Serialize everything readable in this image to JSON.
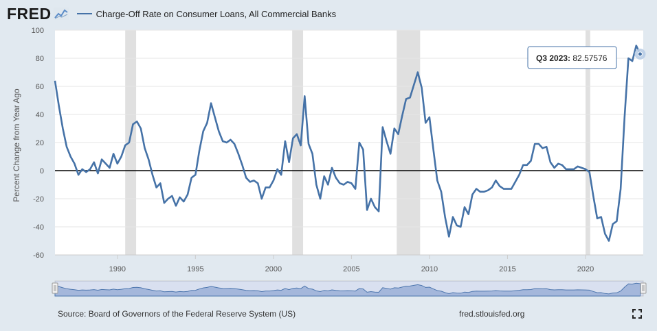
{
  "header": {
    "logo_text": "FRED",
    "legend_label": "Charge-Off Rate on Consumer Loans, All Commercial Banks"
  },
  "footer": {
    "source": "Source: Board of Governors of the Federal Reserve System (US)",
    "url": "fred.stlouisfed.org"
  },
  "colors": {
    "series": "#4572a7",
    "recession": "#e0e0e0",
    "zero_line": "#000000",
    "navigator_fill": "#b8c9e3"
  },
  "tooltip": {
    "label": "Q3 2023:",
    "value": "82.57576"
  },
  "chart_data": {
    "type": "line",
    "ylabel": "Percent Change from Year Ago",
    "ylim": [
      -60,
      100
    ],
    "xlim": [
      1986.0,
      2023.7
    ],
    "y_ticks": [
      100,
      80,
      60,
      40,
      20,
      0,
      -20,
      -40,
      -60
    ],
    "x_ticks": [
      1990,
      1995,
      2000,
      2005,
      2010,
      2015,
      2020
    ],
    "recessions": [
      [
        1990.5,
        1991.2
      ],
      [
        2001.2,
        2001.9
      ],
      [
        2007.9,
        2009.4
      ],
      [
        2020.0,
        2020.3
      ]
    ],
    "series": [
      {
        "name": "Charge-Off Rate on Consumer Loans, All Commercial Banks",
        "x": [
          1986.0,
          1986.25,
          1986.5,
          1986.75,
          1987.0,
          1987.25,
          1987.5,
          1987.75,
          1988.0,
          1988.25,
          1988.5,
          1988.75,
          1989.0,
          1989.25,
          1989.5,
          1989.75,
          1990.0,
          1990.25,
          1990.5,
          1990.75,
          1991.0,
          1991.25,
          1991.5,
          1991.75,
          1992.0,
          1992.25,
          1992.5,
          1992.75,
          1993.0,
          1993.25,
          1993.5,
          1993.75,
          1994.0,
          1994.25,
          1994.5,
          1994.75,
          1995.0,
          1995.25,
          1995.5,
          1995.75,
          1996.0,
          1996.25,
          1996.5,
          1996.75,
          1997.0,
          1997.25,
          1997.5,
          1997.75,
          1998.0,
          1998.25,
          1998.5,
          1998.75,
          1999.0,
          1999.25,
          1999.5,
          1999.75,
          2000.0,
          2000.25,
          2000.5,
          2000.75,
          2001.0,
          2001.25,
          2001.5,
          2001.75,
          2002.0,
          2002.25,
          2002.5,
          2002.75,
          2003.0,
          2003.25,
          2003.5,
          2003.75,
          2004.0,
          2004.25,
          2004.5,
          2004.75,
          2005.0,
          2005.25,
          2005.5,
          2005.75,
          2006.0,
          2006.25,
          2006.5,
          2006.75,
          2007.0,
          2007.25,
          2007.5,
          2007.75,
          2008.0,
          2008.25,
          2008.5,
          2008.75,
          2009.0,
          2009.25,
          2009.5,
          2009.75,
          2010.0,
          2010.25,
          2010.5,
          2010.75,
          2011.0,
          2011.25,
          2011.5,
          2011.75,
          2012.0,
          2012.25,
          2012.5,
          2012.75,
          2013.0,
          2013.25,
          2013.5,
          2013.75,
          2014.0,
          2014.25,
          2014.5,
          2014.75,
          2015.0,
          2015.25,
          2015.5,
          2015.75,
          2016.0,
          2016.25,
          2016.5,
          2016.75,
          2017.0,
          2017.25,
          2017.5,
          2017.75,
          2018.0,
          2018.25,
          2018.5,
          2018.75,
          2019.0,
          2019.25,
          2019.5,
          2019.75,
          2020.0,
          2020.25,
          2020.5,
          2020.75,
          2021.0,
          2021.25,
          2021.5,
          2021.75,
          2022.0,
          2022.25,
          2022.5,
          2022.75,
          2023.0,
          2023.25,
          2023.5
        ],
        "values": [
          64,
          46,
          30,
          17,
          10,
          5,
          -3,
          1,
          -1,
          1,
          6,
          -2,
          8,
          5,
          2,
          12,
          5,
          10,
          18,
          20,
          33,
          35,
          30,
          16,
          8,
          -3,
          -12,
          -9,
          -23,
          -20,
          -18,
          -25,
          -19,
          -22,
          -17,
          -5,
          -3,
          14,
          28,
          34,
          48,
          38,
          28,
          21,
          20,
          22,
          19,
          12,
          4,
          -5,
          -8,
          -7,
          -9,
          -20,
          -12,
          -12,
          -7,
          1,
          -3,
          21,
          6,
          23,
          26,
          18,
          53,
          19,
          12,
          -10,
          -20,
          -4,
          -10,
          2,
          -5,
          -9,
          -10,
          -8,
          -9,
          -13,
          20,
          15,
          -28,
          -20,
          -26,
          -29,
          31,
          21,
          12,
          30,
          26,
          39,
          51,
          52,
          61,
          70,
          59,
          34,
          38,
          15,
          -7,
          -15,
          -33,
          -47,
          -33,
          -39,
          -40,
          -26,
          -31,
          -17,
          -13,
          -15,
          -15,
          -14,
          -12,
          -7,
          -11,
          -13,
          -13,
          -13,
          -8,
          -3,
          4,
          4,
          7,
          19,
          19,
          16,
          17,
          6,
          2,
          5,
          4,
          1,
          1,
          1,
          3,
          2,
          1,
          -1,
          -18,
          -34,
          -33,
          -45,
          -50,
          -38,
          -36,
          -13,
          38,
          80,
          78,
          89,
          83
        ]
      }
    ]
  }
}
